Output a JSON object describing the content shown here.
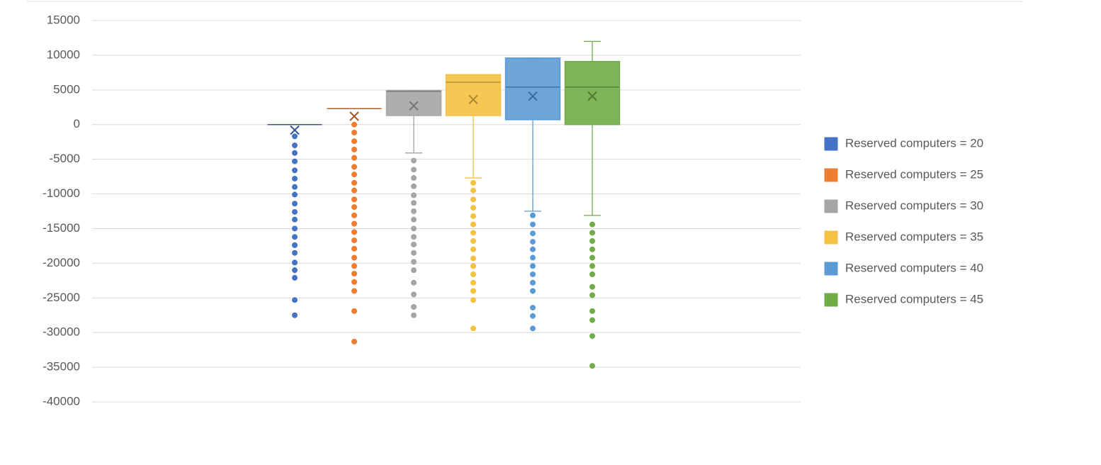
{
  "chart_data": {
    "type": "box",
    "ylim": [
      -40000,
      15000
    ],
    "yticks": [
      15000,
      10000,
      5000,
      0,
      -5000,
      -10000,
      -15000,
      -20000,
      -25000,
      -30000,
      -35000,
      -40000
    ],
    "grid": true,
    "legend": "right",
    "series": [
      {
        "name": "Reserved computers = 20",
        "color": "#4472c4",
        "min": 0,
        "q1": 0,
        "median": 0,
        "q3": 0,
        "max": 0,
        "mean": -800,
        "outliers": [
          -1700,
          -3000,
          -4100,
          -5300,
          -6600,
          -7800,
          -9000,
          -10100,
          -11400,
          -12600,
          -13700,
          -15000,
          -16200,
          -17400,
          -18500,
          -19900,
          -21000,
          -22100,
          -25300,
          -27500
        ]
      },
      {
        "name": "Reserved computers = 25",
        "color": "#ed7d31",
        "min": 2300,
        "q1": 2300,
        "median": 2300,
        "q3": 2300,
        "max": 2300,
        "mean": 1200,
        "outliers": [
          0,
          -1150,
          -2400,
          -3600,
          -4800,
          -6100,
          -7200,
          -8400,
          -9500,
          -10800,
          -11900,
          -13100,
          -14300,
          -15500,
          -16700,
          -17900,
          -19200,
          -20400,
          -21500,
          -22700,
          -24000,
          -26900,
          -31300
        ]
      },
      {
        "name": "Reserved computers = 30",
        "color": "#a5a5a5",
        "min": -4100,
        "q1": 1300,
        "median": 4800,
        "q3": 4900,
        "max": 4900,
        "mean": 2700,
        "outliers": [
          -5200,
          -6500,
          -7700,
          -8900,
          -10200,
          -11300,
          -12500,
          -13700,
          -15000,
          -16200,
          -17300,
          -18500,
          -19800,
          -21000,
          -22800,
          -24500,
          -26300,
          -27500
        ]
      },
      {
        "name": "Reserved computers = 35",
        "color": "#f4c142",
        "min": -7700,
        "q1": 1300,
        "median": 6100,
        "q3": 7200,
        "max": 7200,
        "mean": 3600,
        "outliers": [
          -8400,
          -9500,
          -10800,
          -12000,
          -13200,
          -14400,
          -15600,
          -16800,
          -18000,
          -19300,
          -20400,
          -21600,
          -22800,
          -24000,
          -25300,
          -29400
        ]
      },
      {
        "name": "Reserved computers = 40",
        "color": "#5b9bd5",
        "min": -12500,
        "q1": 700,
        "median": 5400,
        "q3": 9600,
        "max": 9600,
        "mean": 4100,
        "outliers": [
          -13100,
          -14400,
          -15700,
          -16900,
          -18000,
          -19200,
          -20400,
          -21600,
          -22800,
          -24000,
          -26400,
          -27600,
          -29400
        ]
      },
      {
        "name": "Reserved computers = 45",
        "color": "#70ad47",
        "min": -13100,
        "q1": 0,
        "median": 5400,
        "q3": 9100,
        "max": 12000,
        "mean": 4100,
        "outliers": [
          -14400,
          -15600,
          -16800,
          -18000,
          -19200,
          -20400,
          -21600,
          -23400,
          -24600,
          -26900,
          -28200,
          -30500,
          -34800
        ]
      }
    ]
  }
}
